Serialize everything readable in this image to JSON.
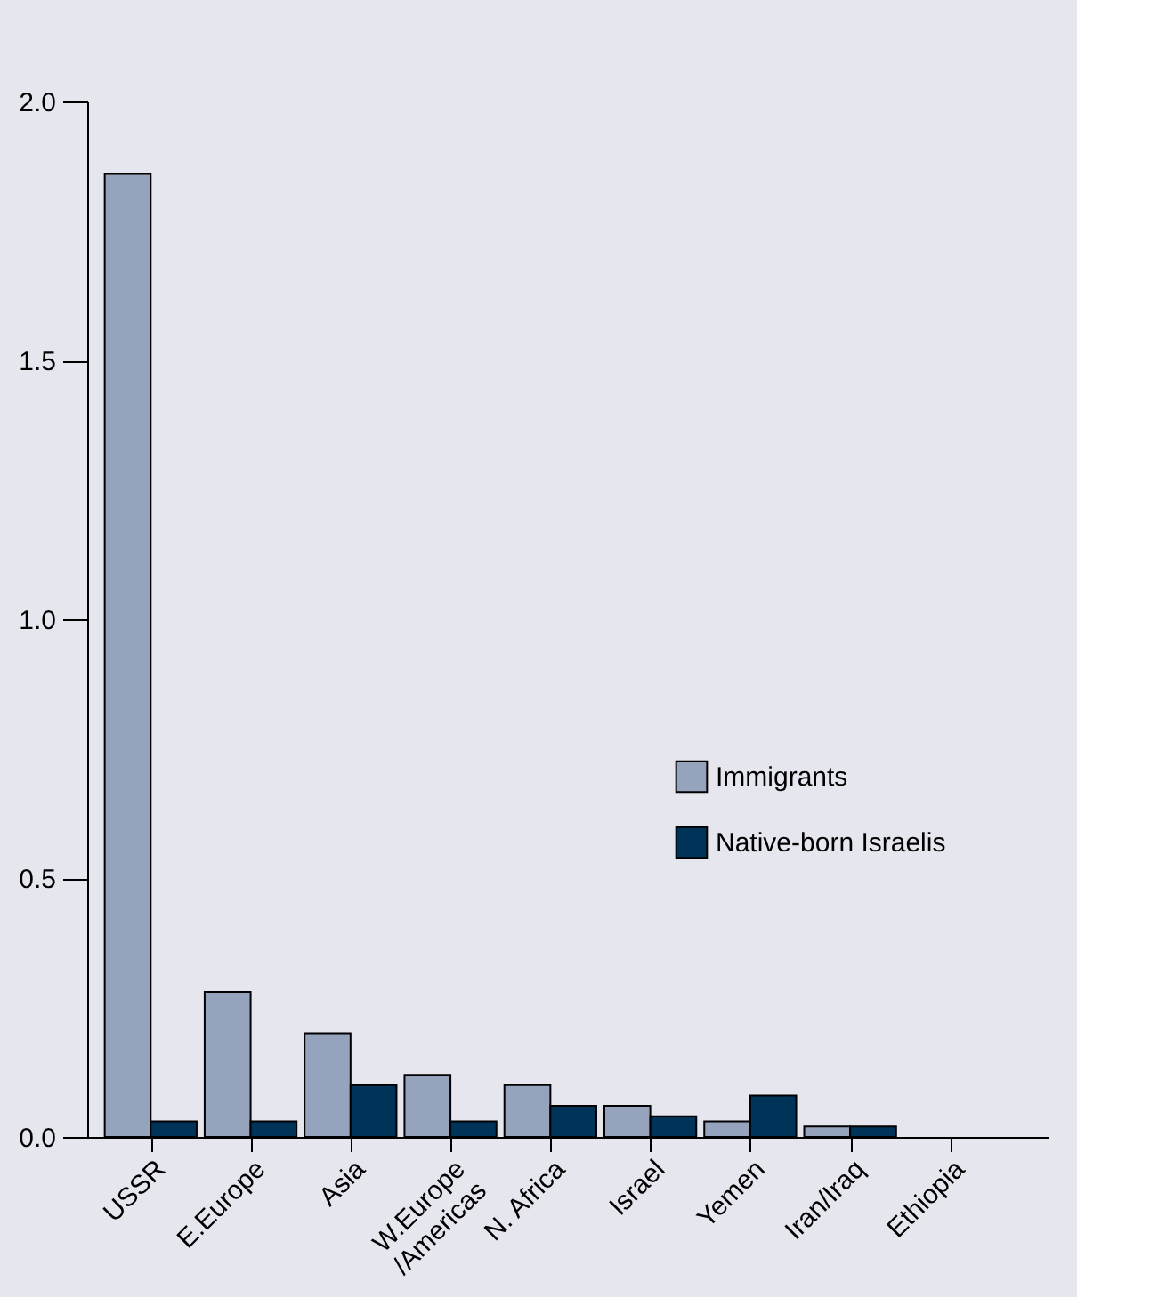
{
  "chart_data": {
    "type": "bar",
    "categories": [
      "USSR",
      "E.Europe",
      "Asia",
      "W.Europe\n/Americas",
      "N. Africa",
      "Israel",
      "Yemen",
      "Iran/Iraq",
      "Ethiopia"
    ],
    "series": [
      {
        "name": "Immigrants",
        "color": "#96a3bc",
        "values": [
          1.86,
          0.28,
          0.2,
          0.12,
          0.1,
          0.06,
          0.03,
          0.02,
          null
        ]
      },
      {
        "name": "Native-born Israelis",
        "color": "#003358",
        "values": [
          0.03,
          0.03,
          0.1,
          0.03,
          0.06,
          0.04,
          0.08,
          0.02,
          null
        ]
      }
    ],
    "ylim": [
      0,
      2.0
    ],
    "yticks": [
      {
        "value": 0,
        "label": "0.0"
      },
      {
        "value": 0.5,
        "label": "0.5"
      },
      {
        "value": 1.0,
        "label": "1.0"
      },
      {
        "value": 1.5,
        "label": "1.5"
      },
      {
        "value": 2.0,
        "label": "2.0"
      }
    ],
    "grid": false,
    "legend": "right"
  }
}
